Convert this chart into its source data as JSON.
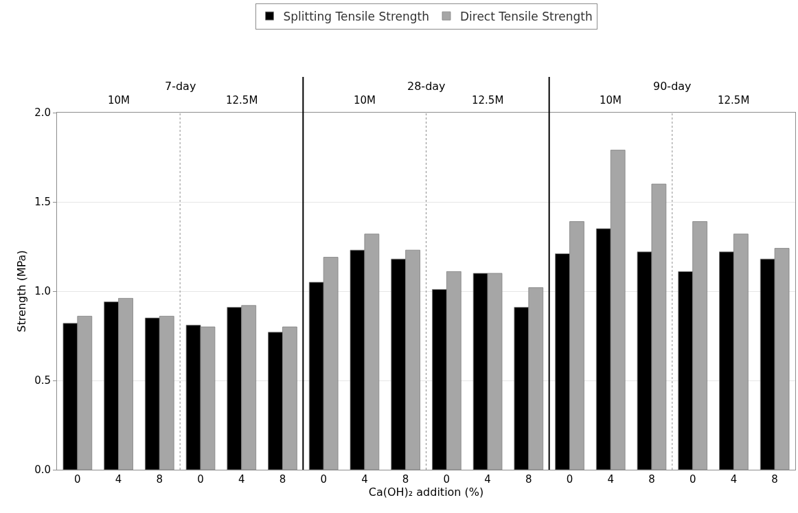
{
  "chart_data": {
    "type": "bar",
    "xlabel": "Ca(OH)₂ addition (%)",
    "ylabel": "Strength (MPa)",
    "categories": [
      "0",
      "4",
      "8",
      "0",
      "4",
      "8",
      "0",
      "4",
      "8",
      "0",
      "4",
      "8",
      "0",
      "4",
      "8",
      "0",
      "4",
      "8"
    ],
    "series": [
      {
        "name": "Splitting Tensile Strength",
        "color": "#000000",
        "values": [
          0.82,
          0.94,
          0.85,
          0.81,
          0.91,
          0.77,
          1.05,
          1.23,
          1.18,
          1.01,
          1.1,
          0.91,
          1.21,
          1.35,
          1.22,
          1.11,
          1.22,
          1.18
        ]
      },
      {
        "name": "Direct Tensile Strength",
        "color": "#a6a6a6",
        "values": [
          0.86,
          0.96,
          0.86,
          0.8,
          0.92,
          0.8,
          1.19,
          1.32,
          1.23,
          1.11,
          1.1,
          1.02,
          1.39,
          1.79,
          1.6,
          1.39,
          1.32,
          1.24
        ]
      }
    ],
    "annotations": [
      "7-day",
      "10M",
      "12.5M",
      "28-day",
      "10M",
      "12.5M",
      "90-day",
      "10M",
      "12.5M"
    ],
    "ylim": [
      0,
      2.0
    ],
    "yticks": [
      {
        "value": 0,
        "label": "0.0"
      },
      {
        "value": 0.5,
        "label": "0.5"
      },
      {
        "value": 1.0,
        "label": "1.0"
      },
      {
        "value": 1.5,
        "label": "1.5"
      },
      {
        "value": 2.0,
        "label": "2.0"
      }
    ],
    "grid": "y",
    "legend": "top"
  }
}
